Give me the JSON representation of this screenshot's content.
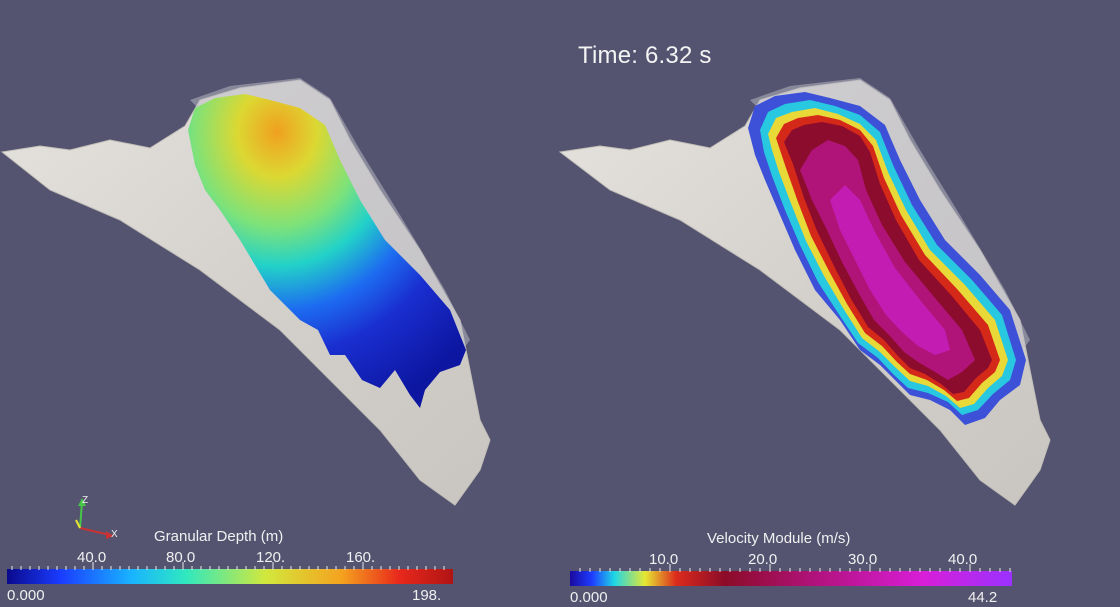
{
  "time_label": "Time: 6.32 s",
  "orientation_axes": {
    "z_label": "Z",
    "x_label": "X"
  },
  "colorbars": {
    "depth": {
      "title": "Granular Depth (m)",
      "min_label": "0.000",
      "max_label": "198.",
      "ticks": [
        "40.0",
        "80.0",
        "120.",
        "160."
      ],
      "colormap": "jet",
      "colors": [
        "#0a0a8c",
        "#1a3cff",
        "#19b4ff",
        "#2fe8c0",
        "#d2e83c",
        "#f5a21e",
        "#e8281c",
        "#b01414"
      ]
    },
    "velocity": {
      "title": "Velocity Module (m/s)",
      "min_label": "0.000",
      "max_label": "44.2",
      "ticks": [
        "10.0",
        "20.0",
        "30.0",
        "40.0"
      ],
      "colormap": "rainbow-desaturated-magenta",
      "colors": [
        "#1a0aa0",
        "#1e3cff",
        "#1fd6e6",
        "#e6e633",
        "#dc2b1c",
        "#8c0c28",
        "#b0127a",
        "#d81ed8",
        "#9a32ff"
      ]
    }
  },
  "colors": {
    "background": "#545471",
    "terrain": "#dcd9d4",
    "text": "#f0f0f0"
  }
}
